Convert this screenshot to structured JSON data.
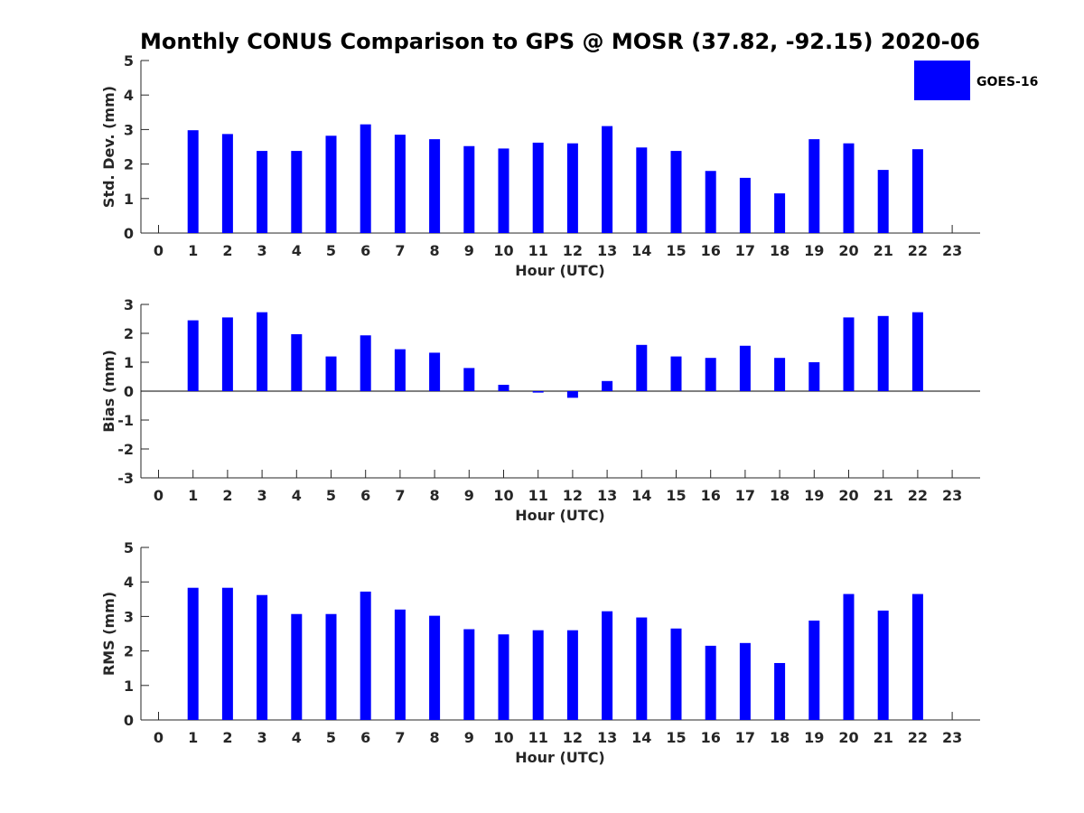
{
  "title": "Monthly CONUS Comparison to GPS @ MOSR (37.82, -92.15) 2020-06",
  "legend": {
    "label": "GOES-16",
    "color": "#0000ff"
  },
  "chart_data": [
    {
      "type": "bar",
      "title": "Monthly CONUS Comparison to GPS @ MOSR (37.82, -92.15) 2020-06",
      "xlabel": "Hour (UTC)",
      "ylabel": "Std. Dev. (mm)",
      "ylim": [
        0,
        5
      ],
      "yticks": [
        0,
        1,
        2,
        3,
        4,
        5
      ],
      "categories": [
        "0",
        "1",
        "2",
        "3",
        "4",
        "5",
        "6",
        "7",
        "8",
        "9",
        "10",
        "11",
        "12",
        "13",
        "14",
        "15",
        "16",
        "17",
        "18",
        "19",
        "20",
        "21",
        "22",
        "23"
      ],
      "series": [
        {
          "name": "GOES-16",
          "color": "#0000ff",
          "values": [
            null,
            2.98,
            2.87,
            2.38,
            2.38,
            2.82,
            3.15,
            2.85,
            2.72,
            2.52,
            2.45,
            2.62,
            2.6,
            3.1,
            2.48,
            2.38,
            1.8,
            1.6,
            1.15,
            2.72,
            2.6,
            1.83,
            2.43,
            null
          ]
        }
      ]
    },
    {
      "type": "bar",
      "xlabel": "Hour (UTC)",
      "ylabel": "Bias (mm)",
      "ylim": [
        -3,
        3
      ],
      "yticks": [
        -3,
        -2,
        -1,
        0,
        1,
        2,
        3
      ],
      "categories": [
        "0",
        "1",
        "2",
        "3",
        "4",
        "5",
        "6",
        "7",
        "8",
        "9",
        "10",
        "11",
        "12",
        "13",
        "14",
        "15",
        "16",
        "17",
        "18",
        "19",
        "20",
        "21",
        "22",
        "23"
      ],
      "series": [
        {
          "name": "GOES-16",
          "color": "#0000ff",
          "values": [
            null,
            2.45,
            2.55,
            2.73,
            1.97,
            1.2,
            1.93,
            1.45,
            1.33,
            0.8,
            0.22,
            -0.05,
            -0.23,
            0.35,
            1.6,
            1.2,
            1.15,
            1.57,
            1.15,
            1.0,
            2.55,
            2.6,
            2.73,
            null
          ]
        }
      ]
    },
    {
      "type": "bar",
      "xlabel": "Hour (UTC)",
      "ylabel": "RMS (mm)",
      "ylim": [
        0,
        5
      ],
      "yticks": [
        0,
        1,
        2,
        3,
        4,
        5
      ],
      "categories": [
        "0",
        "1",
        "2",
        "3",
        "4",
        "5",
        "6",
        "7",
        "8",
        "9",
        "10",
        "11",
        "12",
        "13",
        "14",
        "15",
        "16",
        "17",
        "18",
        "19",
        "20",
        "21",
        "22",
        "23"
      ],
      "series": [
        {
          "name": "GOES-16",
          "color": "#0000ff",
          "values": [
            null,
            3.83,
            3.83,
            3.62,
            3.07,
            3.07,
            3.72,
            3.2,
            3.02,
            2.63,
            2.48,
            2.6,
            2.6,
            3.15,
            2.97,
            2.65,
            2.15,
            2.23,
            1.65,
            2.88,
            3.65,
            3.17,
            3.65,
            null
          ]
        }
      ]
    }
  ]
}
